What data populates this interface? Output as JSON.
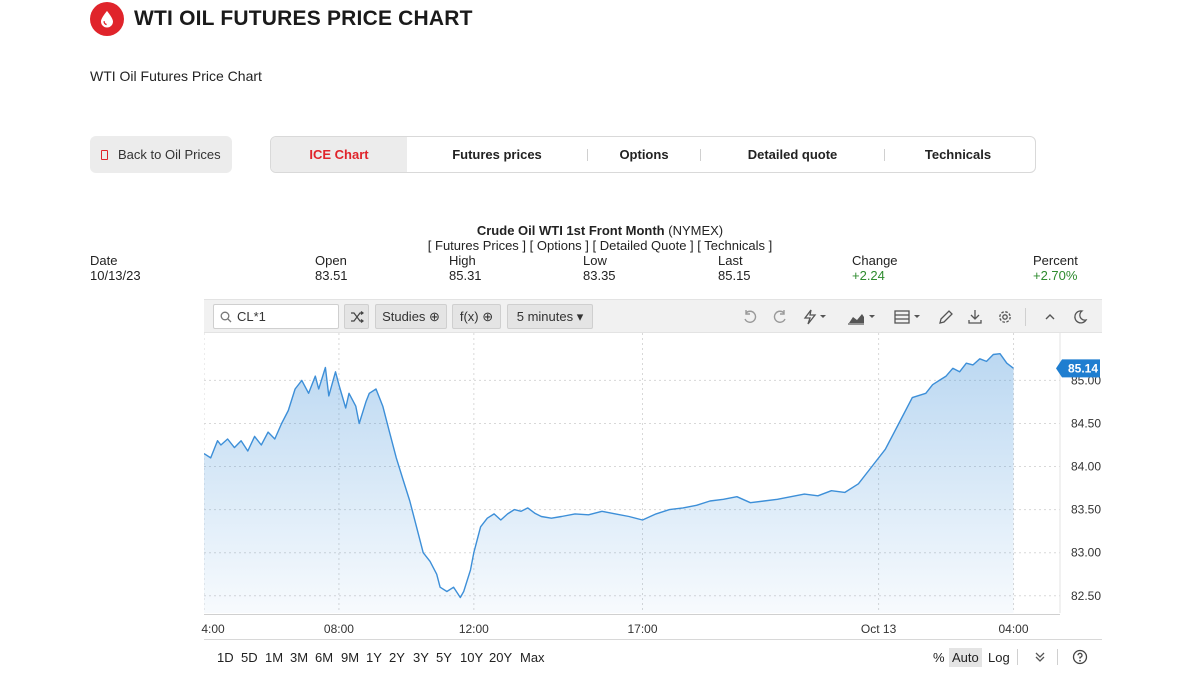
{
  "header": {
    "title": "WTI OIL FUTURES PRICE CHART",
    "subtitle": "WTI Oil Futures Price Chart"
  },
  "nav": {
    "back_label": "Back to Oil Prices",
    "tabs": [
      {
        "label": "ICE Chart",
        "active": true
      },
      {
        "label": "Futures prices"
      },
      {
        "label": "Options"
      },
      {
        "label": "Detailed quote"
      },
      {
        "label": "Technicals"
      }
    ]
  },
  "chart_header": {
    "title_bold": "Crude Oil WTI 1st Front Month",
    "title_exchange": " (NYMEX)",
    "links_line": "[ Futures Prices ] [ Options ] [ Detailed Quote ] [ Technicals ]"
  },
  "quote": {
    "date_label": "Date",
    "date_value": "10/13/23",
    "open_label": "Open",
    "open_value": "83.51",
    "high_label": "High",
    "high_value": "85.31",
    "low_label": "Low",
    "low_value": "83.35",
    "last_label": "Last",
    "last_value": "85.15",
    "change_label": "Change",
    "change_value": "+2.24",
    "percent_label": "Percent",
    "percent_value": "+2.70%"
  },
  "toolbar": {
    "symbol_value": "CL*1",
    "studies_label": "Studies ⊕",
    "fx_label": "f(x) ⊕",
    "interval_label": "5 minutes ▾"
  },
  "bottom_bar": {
    "ranges": [
      "1D",
      "5D",
      "1M",
      "3M",
      "6M",
      "9M",
      "1Y",
      "2Y",
      "3Y",
      "5Y",
      "10Y",
      "20Y",
      "Max"
    ],
    "scale_percent": "%",
    "scale_auto": "Auto",
    "scale_log": "Log"
  },
  "colors": {
    "brand_red": "#e0242b",
    "line_blue": "#3d8fd8",
    "positive_green": "#2e8b2e"
  },
  "chart_data": {
    "type": "area",
    "y_ticks": [
      "82.50",
      "83.00",
      "83.50",
      "84.00",
      "84.50",
      "85.00"
    ],
    "ylim": [
      82.3,
      85.55
    ],
    "x_ticks": [
      "4:00",
      "08:00",
      "12:00",
      "17:00",
      "Oct 13",
      "04:00"
    ],
    "x_tick_hours": [
      0,
      4,
      8,
      13,
      20,
      24
    ],
    "xlim": [
      0,
      25.2
    ],
    "last_price_label": "85.14",
    "grid": true,
    "series": [
      {
        "x": [
          0,
          0.2,
          0.4,
          0.5,
          0.7,
          0.9,
          1.1,
          1.3,
          1.5,
          1.7,
          1.9,
          2.1,
          2.3,
          2.5,
          2.7,
          2.9,
          3.1,
          3.3,
          3.4,
          3.6,
          3.7,
          3.9,
          4.0,
          4.2,
          4.3,
          4.5,
          4.6,
          4.8,
          4.9,
          5.1,
          5.3,
          5.5,
          5.7,
          5.9,
          6.1,
          6.3,
          6.5,
          6.7,
          6.9,
          7.0,
          7.2,
          7.4,
          7.6,
          7.7,
          7.9,
          8.0,
          8.2,
          8.4,
          8.6,
          8.8,
          9.0,
          9.2,
          9.4,
          9.6,
          9.8,
          10.0,
          10.3,
          10.6,
          11.0,
          11.4,
          11.8,
          12.2,
          12.6,
          13.0,
          13.4,
          13.8,
          14.2,
          14.6,
          15.0,
          15.4,
          15.8,
          16.2,
          16.6,
          17.0,
          17.4,
          17.8,
          18.2,
          18.6,
          19.0,
          19.4,
          19.8,
          20.2,
          20.6,
          21.0,
          21.4,
          21.6,
          21.8,
          22.0,
          22.2,
          22.4,
          22.6,
          22.8,
          23.0,
          23.2,
          23.4,
          23.6,
          23.8,
          24.0
        ],
        "values": [
          84.15,
          84.1,
          84.3,
          84.25,
          84.32,
          84.22,
          84.3,
          84.18,
          84.35,
          84.25,
          84.4,
          84.32,
          84.5,
          84.65,
          84.9,
          85.0,
          84.85,
          85.05,
          84.9,
          85.15,
          84.82,
          85.1,
          84.95,
          84.68,
          84.85,
          84.7,
          84.5,
          84.75,
          84.85,
          84.9,
          84.7,
          84.4,
          84.1,
          83.85,
          83.6,
          83.3,
          83.0,
          82.9,
          82.75,
          82.6,
          82.55,
          82.6,
          82.48,
          82.55,
          82.8,
          83.0,
          83.3,
          83.4,
          83.45,
          83.38,
          83.45,
          83.5,
          83.48,
          83.52,
          83.46,
          83.42,
          83.4,
          83.42,
          83.45,
          83.44,
          83.48,
          83.45,
          83.42,
          83.38,
          83.45,
          83.5,
          83.52,
          83.55,
          83.6,
          83.62,
          83.65,
          83.58,
          83.6,
          83.62,
          83.65,
          83.68,
          83.66,
          83.72,
          83.7,
          83.8,
          84.0,
          84.2,
          84.5,
          84.8,
          84.85,
          84.95,
          85.0,
          85.05,
          85.14,
          85.1,
          85.2,
          85.18,
          85.25,
          85.22,
          85.3,
          85.31,
          85.2,
          85.14
        ]
      }
    ]
  }
}
